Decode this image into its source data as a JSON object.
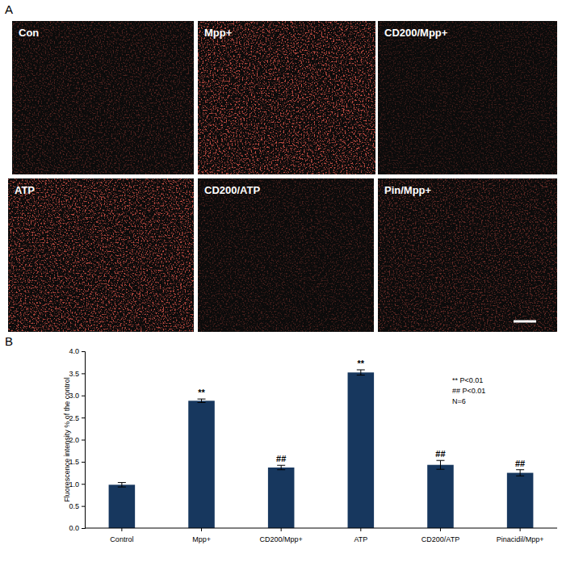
{
  "panel_a": {
    "label": "A",
    "images": [
      "Con",
      "Mpp+",
      "CD200/Mpp+",
      "ATP",
      "CD200/ATP",
      "Pin/Mpp+"
    ]
  },
  "panel_b": {
    "label": "B"
  },
  "chart_data": {
    "type": "bar",
    "y_label": "Fluorescence intensity % of the control",
    "categories": [
      "Control",
      "Mpp+",
      "CD200/Mpp+",
      "ATP",
      "CD200/ATP",
      "Pinacidil/Mpp+"
    ],
    "values": [
      0.98,
      2.88,
      1.37,
      3.52,
      1.43,
      1.25
    ],
    "errors": [
      0.05,
      0.04,
      0.05,
      0.06,
      0.1,
      0.07
    ],
    "color": "#17375e",
    "ylim": [
      0,
      4
    ],
    "yticks": [
      {
        "value": 0,
        "label": "0.0"
      },
      0.5,
      {
        "value": 1,
        "label": "1.0"
      },
      1.5,
      {
        "value": 2,
        "label": "2.0"
      },
      2.5,
      {
        "value": 3,
        "label": "3.0"
      },
      3.5,
      {
        "value": 4,
        "label": "4.0"
      }
    ],
    "grid": false,
    "annotations": [
      {
        "text": "**",
        "category": "Mpp+"
      },
      {
        "text": "##",
        "category": "CD200/Mpp+"
      },
      {
        "text": "**",
        "category": "ATP"
      },
      {
        "text": "##",
        "category": "CD200/ATP"
      },
      {
        "text": "##",
        "category": "Pinacidil/Mpp+"
      }
    ],
    "notes": [
      "** P<0.01",
      "## P<0.01",
      "N=6"
    ]
  }
}
